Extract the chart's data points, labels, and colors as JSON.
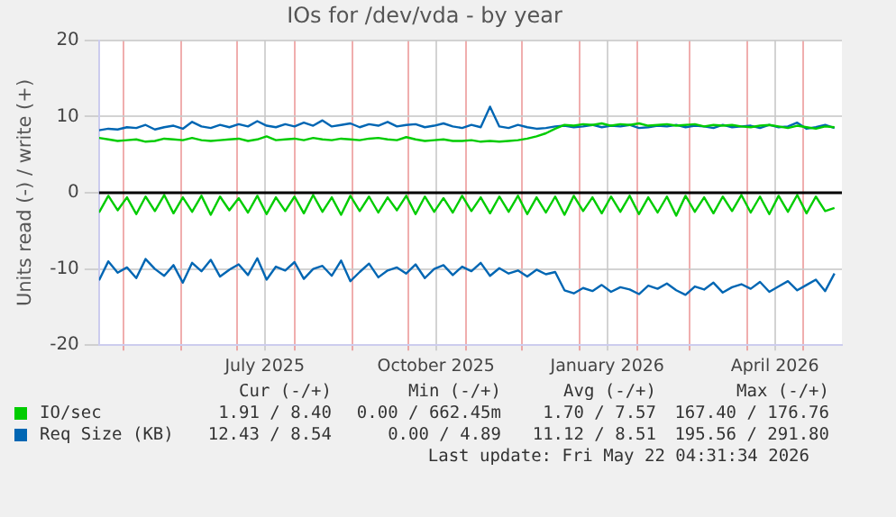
{
  "chart_data": {
    "type": "line",
    "title": "IOs for /dev/vda - by year",
    "ylabel": "Units read (-) / write (+)",
    "x": [
      "2025-04-18",
      "2025-04-23",
      "2025-04-28",
      "2025-05-03",
      "2025-05-08",
      "2025-05-13",
      "2025-05-18",
      "2025-05-23",
      "2025-05-28",
      "2025-06-02",
      "2025-06-07",
      "2025-06-12",
      "2025-06-17",
      "2025-06-22",
      "2025-06-27",
      "2025-07-02",
      "2025-07-07",
      "2025-07-12",
      "2025-07-17",
      "2025-07-22",
      "2025-07-27",
      "2025-08-01",
      "2025-08-06",
      "2025-08-11",
      "2025-08-16",
      "2025-08-21",
      "2025-08-26",
      "2025-08-31",
      "2025-09-05",
      "2025-09-10",
      "2025-09-15",
      "2025-09-20",
      "2025-09-25",
      "2025-09-30",
      "2025-10-05",
      "2025-10-10",
      "2025-10-15",
      "2025-10-20",
      "2025-10-25",
      "2025-10-30",
      "2025-11-04",
      "2025-11-09",
      "2025-11-14",
      "2025-11-19",
      "2025-11-24",
      "2025-11-29",
      "2025-12-04",
      "2025-12-09",
      "2025-12-14",
      "2025-12-19",
      "2025-12-24",
      "2025-12-29",
      "2026-01-03",
      "2026-01-08",
      "2026-01-13",
      "2026-01-18",
      "2026-01-23",
      "2026-01-28",
      "2026-02-02",
      "2026-02-07",
      "2026-02-12",
      "2026-02-17",
      "2026-02-22",
      "2026-02-27",
      "2026-03-04",
      "2026-03-09",
      "2026-03-14",
      "2026-03-19",
      "2026-03-24",
      "2026-03-29",
      "2026-04-03",
      "2026-04-08",
      "2026-04-13",
      "2026-04-18",
      "2026-04-23",
      "2026-04-28",
      "2026-05-03",
      "2026-05-08",
      "2026-05-13",
      "2026-05-18"
    ],
    "series": [
      {
        "color": "#00cc00",
        "values": [
          -2.6,
          -0.4,
          -2.3,
          -0.6,
          -2.8,
          -0.5,
          -2.4,
          -0.3,
          -2.7,
          -0.6,
          -2.5,
          -0.4,
          -2.9,
          -0.5,
          -2.3,
          -0.7,
          -2.6,
          -0.4,
          -2.8,
          -0.6,
          -2.4,
          -0.5,
          -2.7,
          -0.3,
          -2.5,
          -0.6,
          -2.9,
          -0.4,
          -2.4,
          -0.5,
          -2.6,
          -0.6,
          -2.3,
          -0.4,
          -2.8,
          -0.5,
          -2.5,
          -0.7,
          -2.6,
          -0.4,
          -2.4,
          -0.6,
          -2.7,
          -0.5,
          -2.5,
          -0.4,
          -2.8,
          -0.6,
          -2.6,
          -0.5,
          -2.9,
          -0.4,
          -2.4,
          -0.6,
          -2.7,
          -0.5,
          -2.5,
          -0.4,
          -2.8,
          -0.6,
          -2.6,
          -0.5,
          -3.0,
          -0.4,
          -2.5,
          -0.6,
          -2.7,
          -0.5,
          -2.4,
          -0.3,
          -2.6,
          -0.5,
          -2.8,
          -0.4,
          -2.5,
          -0.3,
          -2.7,
          -0.5,
          -2.4,
          -2.0
        ]
      },
      {
        "name": "IO/sec",
        "color": "#00cc00",
        "values": [
          7.2,
          7.0,
          6.8,
          6.9,
          7.0,
          6.7,
          6.8,
          7.1,
          7.0,
          6.9,
          7.2,
          6.9,
          6.8,
          6.9,
          7.0,
          7.1,
          6.8,
          7.0,
          7.4,
          6.9,
          7.0,
          7.1,
          6.9,
          7.2,
          7.0,
          6.9,
          7.1,
          7.0,
          6.9,
          7.1,
          7.2,
          7.0,
          6.9,
          7.3,
          7.0,
          6.8,
          6.9,
          7.0,
          6.8,
          6.8,
          6.9,
          6.7,
          6.8,
          6.7,
          6.8,
          6.9,
          7.1,
          7.4,
          7.8,
          8.4,
          8.9,
          8.8,
          9.0,
          8.9,
          9.1,
          8.8,
          9.0,
          8.9,
          9.1,
          8.8,
          8.9,
          9.0,
          8.8,
          8.9,
          9.0,
          8.7,
          8.9,
          8.8,
          8.9,
          8.7,
          8.6,
          8.8,
          8.9,
          8.7,
          8.5,
          8.8,
          8.6,
          8.4,
          8.7,
          8.6
        ]
      },
      {
        "color": "#0066b3",
        "values": [
          -11.5,
          -9.0,
          -10.5,
          -9.8,
          -11.2,
          -8.7,
          -10.0,
          -10.9,
          -9.5,
          -11.8,
          -9.2,
          -10.3,
          -8.8,
          -11.0,
          -10.1,
          -9.4,
          -10.8,
          -8.6,
          -11.4,
          -9.7,
          -10.2,
          -9.1,
          -11.3,
          -10.0,
          -9.6,
          -10.9,
          -8.9,
          -11.6,
          -10.4,
          -9.3,
          -11.1,
          -10.2,
          -9.8,
          -10.6,
          -9.4,
          -11.2,
          -10.0,
          -9.5,
          -10.8,
          -9.7,
          -10.3,
          -9.2,
          -10.9,
          -9.9,
          -10.6,
          -10.2,
          -11.0,
          -10.1,
          -10.7,
          -10.4,
          -12.8,
          -13.2,
          -12.5,
          -12.9,
          -12.1,
          -13.0,
          -12.4,
          -12.7,
          -13.3,
          -12.2,
          -12.6,
          -11.9,
          -12.8,
          -13.4,
          -12.3,
          -12.7,
          -11.8,
          -13.1,
          -12.4,
          -12.0,
          -12.6,
          -11.7,
          -13.0,
          -12.3,
          -11.6,
          -12.8,
          -12.1,
          -11.4,
          -12.9,
          -10.6
        ]
      },
      {
        "name": "Req Size (KB)",
        "color": "#0066b3",
        "values": [
          8.2,
          8.4,
          8.3,
          8.6,
          8.5,
          8.9,
          8.3,
          8.6,
          8.8,
          8.4,
          9.3,
          8.7,
          8.5,
          8.9,
          8.6,
          9.0,
          8.7,
          9.4,
          8.8,
          8.6,
          9.0,
          8.7,
          9.2,
          8.8,
          9.5,
          8.7,
          8.9,
          9.1,
          8.6,
          9.0,
          8.8,
          9.3,
          8.7,
          8.9,
          9.0,
          8.6,
          8.8,
          9.1,
          8.7,
          8.5,
          8.9,
          8.6,
          11.3,
          8.7,
          8.5,
          8.9,
          8.6,
          8.4,
          8.5,
          8.7,
          8.8,
          8.6,
          8.7,
          8.9,
          8.6,
          8.8,
          8.7,
          8.9,
          8.5,
          8.6,
          8.8,
          8.7,
          8.9,
          8.6,
          8.8,
          8.7,
          8.5,
          8.9,
          8.6,
          8.7,
          8.8,
          8.5,
          8.9,
          8.6,
          8.7,
          9.2,
          8.4,
          8.6,
          8.9,
          8.5
        ]
      }
    ],
    "xlim": [
      "2025-04-18",
      "2026-05-22"
    ],
    "xticks": [
      {
        "value": "2025-05-01",
        "label": null
      },
      {
        "value": "2025-06-01",
        "label": null
      },
      {
        "value": "2025-07-01",
        "label": null
      },
      {
        "value": "2025-07-16",
        "label": "July 2025"
      },
      {
        "value": "2025-08-01",
        "label": null
      },
      {
        "value": "2025-09-01",
        "label": null
      },
      {
        "value": "2025-10-01",
        "label": null
      },
      {
        "value": "2025-10-16",
        "label": "October 2025"
      },
      {
        "value": "2025-11-01",
        "label": null
      },
      {
        "value": "2025-12-01",
        "label": null
      },
      {
        "value": "2026-01-01",
        "label": null
      },
      {
        "value": "2026-01-16",
        "label": "January 2026"
      },
      {
        "value": "2026-02-01",
        "label": null
      },
      {
        "value": "2026-03-01",
        "label": null
      },
      {
        "value": "2026-04-01",
        "label": null
      },
      {
        "value": "2026-04-16",
        "label": "April 2026"
      },
      {
        "value": "2026-05-01",
        "label": null
      }
    ],
    "ylim": [
      -20,
      20
    ],
    "yticks": [
      -20,
      -10,
      0,
      10,
      20
    ],
    "ref_lines": [
      {
        "axis": "y",
        "value": 0,
        "color": "#000000"
      }
    ],
    "grid": true,
    "legend": "bottom",
    "marker": "none",
    "line_style": "solid",
    "annotations": [
      "Cur (-/+)",
      "Min (-/+)",
      "Avg (-/+)",
      "Max (-/+)",
      "1.91 / 8.40",
      "0.00 / 662.45m",
      "1.70 / 7.57",
      "167.40 / 176.76",
      "12.43 / 8.54",
      "0.00 / 4.89",
      "11.12 / 8.51",
      "195.56 / 291.80",
      "Last update: Fri May 22 04:31:34 2026"
    ]
  }
}
